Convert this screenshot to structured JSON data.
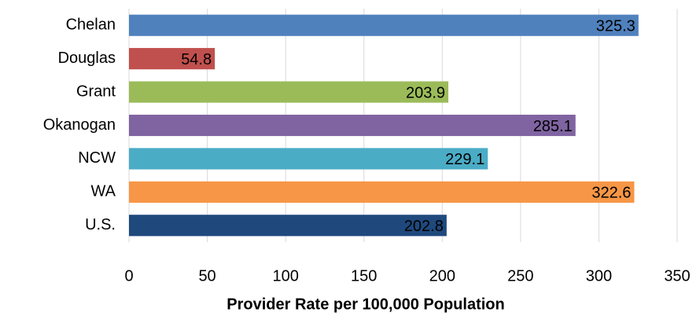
{
  "chart_data": {
    "type": "bar",
    "orientation": "horizontal",
    "categories": [
      "Chelan",
      "Douglas",
      "Grant",
      "Okanogan",
      "NCW",
      "WA",
      "U.S."
    ],
    "values": [
      325.3,
      54.8,
      203.9,
      285.1,
      229.1,
      322.6,
      202.8
    ],
    "colors": [
      "#4f81bd",
      "#c0504d",
      "#9bbb59",
      "#8064a2",
      "#4bacc6",
      "#f79646",
      "#1f497d"
    ],
    "xlabel": "Provider Rate per 100,000 Population",
    "xlim": [
      0,
      350
    ],
    "xticks": [
      0,
      50,
      100,
      150,
      200,
      250,
      300,
      350
    ],
    "grid": true
  }
}
